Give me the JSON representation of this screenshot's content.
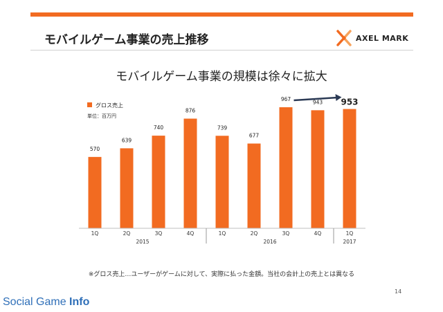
{
  "slide": {
    "title": "モバイルゲーム事業の売上推移",
    "subtitle": "モバイルゲーム事業の規模は徐々に拡大",
    "footnote": "※グロス売上…ユーザーがゲームに対して、実際に払った金額。当社の会計上の売上とは異なる",
    "page_number": "14",
    "logo_text": "AXEL MARK",
    "watermark_main": "Social Game ",
    "watermark_bold": "Info",
    "accent_color": "#f26b21",
    "arrow_color": "#2b3a55"
  },
  "chart_data": {
    "type": "bar",
    "categories": [
      "1Q",
      "2Q",
      "3Q",
      "4Q",
      "1Q",
      "2Q",
      "3Q",
      "4Q",
      "1Q"
    ],
    "groups": [
      {
        "label": "2015",
        "count": 4
      },
      {
        "label": "2016",
        "count": 4
      },
      {
        "label": "2017",
        "count": 1
      }
    ],
    "series": [
      {
        "name": "グロス売上",
        "values": [
          570,
          639,
          740,
          876,
          739,
          677,
          967,
          943,
          953
        ]
      }
    ],
    "unit_note": "単位：百万円",
    "highlight_index": 8,
    "ylim": [
      0,
      1050
    ],
    "legend_position": "top-left",
    "grid": false
  }
}
